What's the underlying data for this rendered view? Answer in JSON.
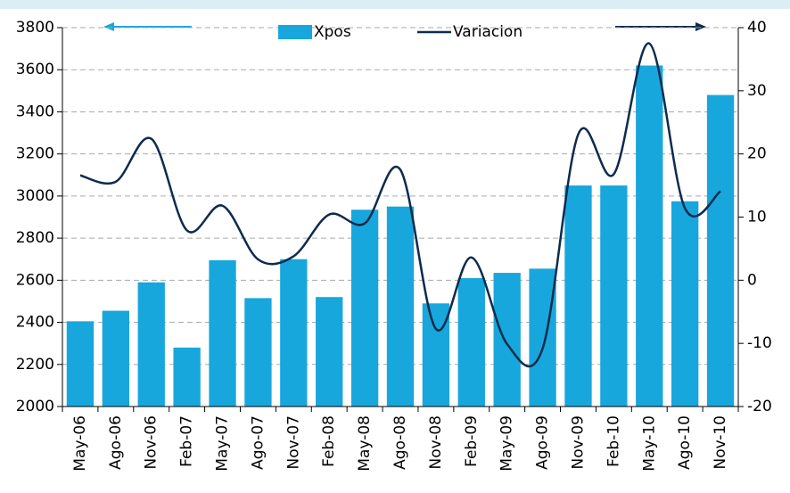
{
  "chart_data": {
    "type": "bar-line",
    "categories": [
      "May-06",
      "Ago-06",
      "Nov-06",
      "Feb-07",
      "May-07",
      "Ago-07",
      "Nov-07",
      "Feb-08",
      "May-08",
      "Ago-08",
      "Nov-08",
      "Feb-09",
      "May-09",
      "Ago-09",
      "Nov-09",
      "Feb-10",
      "May-10",
      "Ago-10",
      "Nov-10"
    ],
    "series": [
      {
        "name": "Xpos",
        "type": "bar",
        "color": "#18a7dc",
        "values": [
          2405,
          2455,
          2590,
          2280,
          2695,
          2515,
          2700,
          2520,
          2935,
          2950,
          2490,
          2610,
          2635,
          2655,
          3050,
          3050,
          3620,
          2975,
          3480
        ]
      },
      {
        "name": "Variacion",
        "type": "line",
        "axis": "y2",
        "color": "#0d2b4e",
        "values": [
          16.6,
          15.6,
          22.4,
          7.9,
          11.8,
          3.3,
          3.8,
          10.4,
          9.0,
          17.5,
          -7.7,
          3.6,
          -10.1,
          -10.8,
          23.1,
          16.8,
          37.5,
          11.4,
          14.1
        ]
      }
    ],
    "ylim": [
      2000,
      3800
    ],
    "yticks": [
      2000,
      2200,
      2400,
      2600,
      2800,
      3000,
      3200,
      3400,
      3600,
      3800
    ],
    "y2lim": [
      -20,
      40
    ],
    "y2ticks": [
      -20,
      -10,
      0,
      10,
      20,
      30,
      40
    ],
    "grid": true,
    "legend": "top"
  }
}
